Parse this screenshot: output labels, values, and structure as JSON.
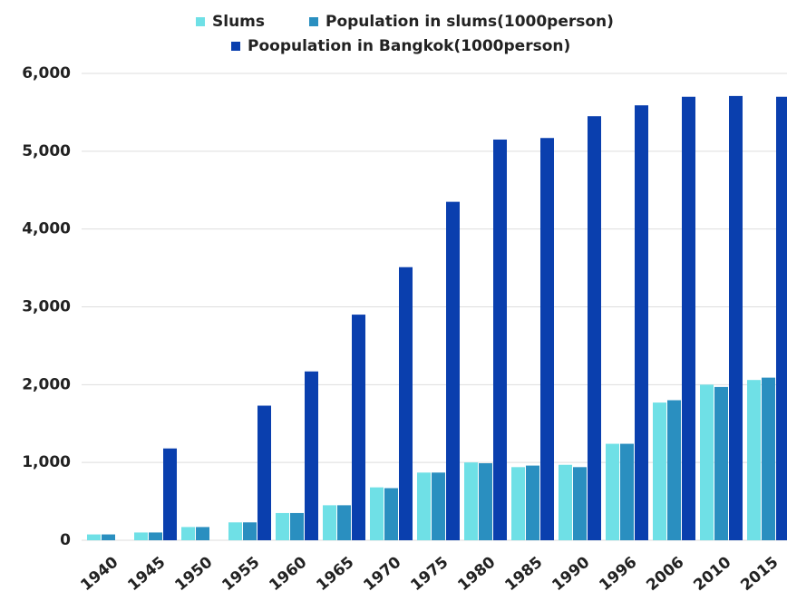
{
  "chart_data": {
    "type": "bar",
    "categories": [
      "1940",
      "1945",
      "1950",
      "1955",
      "1960",
      "1965",
      "1970",
      "1975",
      "1980",
      "1985",
      "1990",
      "1996",
      "2006",
      "2010",
      "2015"
    ],
    "series": [
      {
        "name": "Slums",
        "color": "#6fe0e6",
        "values": [
          75,
          100,
          170,
          230,
          350,
          450,
          680,
          870,
          1000,
          940,
          970,
          1240,
          1770,
          2000,
          2060
        ]
      },
      {
        "name": "Population in slums(1000person)",
        "color": "#2a8fc0",
        "values": [
          75,
          100,
          170,
          230,
          350,
          450,
          670,
          870,
          990,
          960,
          940,
          1240,
          1800,
          1970,
          2090
        ]
      },
      {
        "name": "Poopulation in Bangkok(1000person)",
        "color": "#0a3fae",
        "values": [
          null,
          1180,
          null,
          1730,
          2170,
          2900,
          3510,
          4350,
          5150,
          5170,
          5450,
          5590,
          5700,
          5710,
          5700
        ]
      }
    ],
    "ylim": [
      0,
      6000
    ],
    "yticks": [
      0,
      {
        "value": 1000,
        "label": "1,000"
      },
      {
        "value": 2000,
        "label": "2,000"
      },
      {
        "value": 3000,
        "label": "3,000"
      },
      {
        "value": 4000,
        "label": "4,000"
      },
      {
        "value": 5000,
        "label": "5,000"
      },
      {
        "value": 6000,
        "label": "6,000"
      }
    ],
    "grid": true,
    "legend": "top"
  }
}
